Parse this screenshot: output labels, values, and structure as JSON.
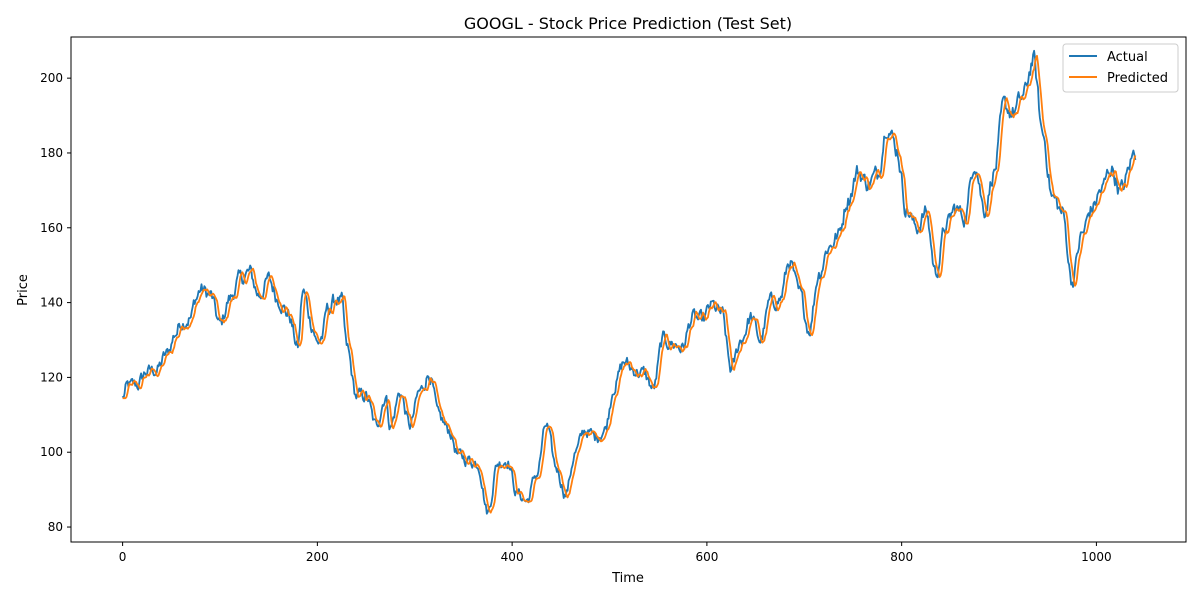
{
  "chart_data": {
    "type": "line",
    "title": "GOOGL - Stock Price Prediction (Test Set)",
    "xlabel": "Time",
    "ylabel": "Price",
    "xlim": [
      -53,
      1092
    ],
    "ylim": [
      76,
      211
    ],
    "xticks": [
      0,
      200,
      400,
      600,
      800,
      1000
    ],
    "yticks": [
      80,
      100,
      120,
      140,
      160,
      180,
      200
    ],
    "grid": false,
    "legend_position": "top-right",
    "series": [
      {
        "name": "Actual",
        "color": "#1f77b4",
        "anchors": [
          [
            0,
            114.5
          ],
          [
            5,
            117.5
          ],
          [
            15,
            118
          ],
          [
            25,
            121.5
          ],
          [
            35,
            122
          ],
          [
            45,
            126
          ],
          [
            55,
            132
          ],
          [
            60,
            135
          ],
          [
            70,
            136
          ],
          [
            75,
            141
          ],
          [
            80,
            143.5
          ],
          [
            90,
            142
          ],
          [
            100,
            134
          ],
          [
            110,
            141
          ],
          [
            120,
            146
          ],
          [
            130,
            148
          ],
          [
            140,
            142
          ],
          [
            150,
            146
          ],
          [
            160,
            141
          ],
          [
            170,
            137
          ],
          [
            180,
            128
          ],
          [
            185,
            143
          ],
          [
            195,
            134
          ],
          [
            200,
            129
          ],
          [
            205,
            131
          ],
          [
            210,
            138
          ],
          [
            220,
            141
          ],
          [
            225,
            140
          ],
          [
            230,
            128
          ],
          [
            240,
            115
          ],
          [
            250,
            115
          ],
          [
            260,
            107
          ],
          [
            270,
            115
          ],
          [
            275,
            107
          ],
          [
            285,
            116
          ],
          [
            295,
            107
          ],
          [
            305,
            116
          ],
          [
            315,
            121
          ],
          [
            325,
            109
          ],
          [
            335,
            106
          ],
          [
            345,
            99
          ],
          [
            355,
            98
          ],
          [
            365,
            97
          ],
          [
            375,
            84
          ],
          [
            385,
            97
          ],
          [
            395,
            98
          ],
          [
            405,
            89
          ],
          [
            415,
            87
          ],
          [
            425,
            94
          ],
          [
            435,
            107
          ],
          [
            445,
            96
          ],
          [
            455,
            89
          ],
          [
            465,
            100
          ],
          [
            475,
            106
          ],
          [
            485,
            104
          ],
          [
            495,
            106
          ],
          [
            505,
            118
          ],
          [
            515,
            124
          ],
          [
            525,
            122
          ],
          [
            535,
            121
          ],
          [
            545,
            117
          ],
          [
            555,
            130
          ],
          [
            565,
            129
          ],
          [
            575,
            128
          ],
          [
            585,
            136
          ],
          [
            595,
            135
          ],
          [
            605,
            139
          ],
          [
            615,
            137
          ],
          [
            625,
            122
          ],
          [
            635,
            130
          ],
          [
            645,
            136
          ],
          [
            655,
            130
          ],
          [
            665,
            140
          ],
          [
            675,
            141
          ],
          [
            685,
            151
          ],
          [
            695,
            142
          ],
          [
            705,
            133
          ],
          [
            715,
            148
          ],
          [
            725,
            155
          ],
          [
            735,
            158
          ],
          [
            745,
            168
          ],
          [
            755,
            175
          ],
          [
            765,
            172
          ],
          [
            775,
            174
          ],
          [
            785,
            188
          ],
          [
            795,
            181
          ],
          [
            805,
            165
          ],
          [
            815,
            160
          ],
          [
            825,
            164
          ],
          [
            835,
            148
          ],
          [
            845,
            160
          ],
          [
            855,
            165
          ],
          [
            865,
            163
          ],
          [
            875,
            178
          ],
          [
            885,
            165
          ],
          [
            895,
            175
          ],
          [
            905,
            192
          ],
          [
            915,
            191
          ],
          [
            925,
            195
          ],
          [
            935,
            205
          ],
          [
            945,
            185
          ],
          [
            955,
            168
          ],
          [
            965,
            164
          ],
          [
            975,
            146
          ],
          [
            985,
            158
          ],
          [
            995,
            165
          ],
          [
            1005,
            170
          ],
          [
            1015,
            176
          ],
          [
            1025,
            170
          ],
          [
            1040,
            180
          ]
        ]
      },
      {
        "name": "Predicted",
        "color": "#ff7f0e",
        "lag": 3
      }
    ]
  },
  "legend": {
    "items": [
      {
        "label": "Actual",
        "color": "#1f77b4"
      },
      {
        "label": "Predicted",
        "color": "#ff7f0e"
      }
    ]
  }
}
